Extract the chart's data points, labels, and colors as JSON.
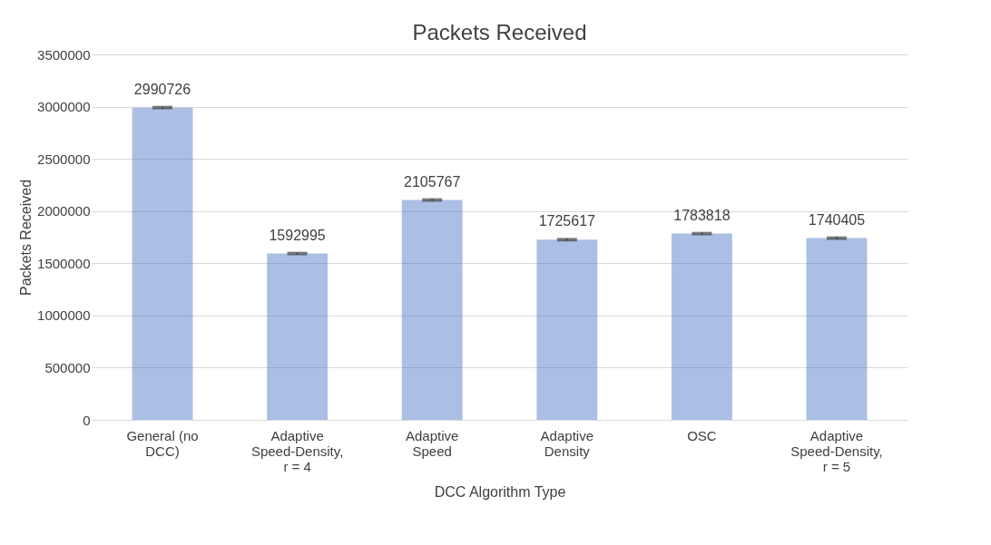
{
  "chart_data": {
    "type": "bar",
    "title": "Packets Received",
    "xlabel": "DCC Algorithm Type",
    "ylabel": "Packets Received",
    "categories": [
      "General (no DCC)",
      "Adaptive Speed-Density, r = 4",
      "Adaptive Speed",
      "Adaptive Density",
      "OSC",
      "Adaptive Speed-Density, r = 5"
    ],
    "values": [
      2990726,
      1592995,
      2105767,
      1725617,
      1783818,
      1740405
    ],
    "errors": [
      8000,
      8000,
      8000,
      8000,
      8000,
      8000
    ],
    "color": "#4472c4",
    "ylim": [
      0,
      3500000
    ],
    "yticks": [
      0,
      500000,
      1000000,
      1500000,
      2000000,
      2500000,
      3000000,
      3500000
    ],
    "grid": "y",
    "data_labels": true
  }
}
